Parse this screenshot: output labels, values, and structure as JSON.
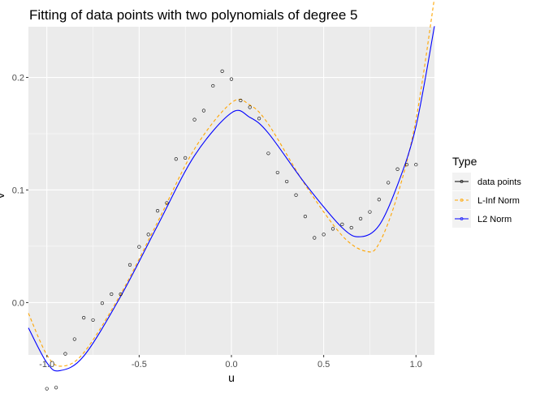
{
  "chart_data": {
    "type": "line",
    "title": "Fitting of data points with two polynomials of degree 5",
    "xlabel": "u",
    "ylabel": "v",
    "xlim": [
      -1.1,
      1.1
    ],
    "ylim": [
      -0.0465,
      0.245
    ],
    "xticks": [
      -1.0,
      -0.5,
      0.0,
      0.5,
      1.0
    ],
    "xtick_labels": [
      "-1.0",
      "-0.5",
      "0.0",
      "0.5",
      "1.0"
    ],
    "yticks": [
      0.0,
      0.1,
      0.2
    ],
    "ytick_labels": [
      "0.0",
      "0.1",
      "0.2"
    ],
    "grid": true,
    "legend": {
      "title": "Type",
      "position": "right",
      "entries": [
        "data points",
        "L-Inf Norm",
        "L2 Norm"
      ]
    },
    "series": [
      {
        "name": "data points",
        "kind": "scatter",
        "color": "#000000",
        "x": [
          -1.0,
          -0.95,
          -0.9,
          -0.85,
          -0.8,
          -0.75,
          -0.7,
          -0.65,
          -0.6,
          -0.55,
          -0.5,
          -0.45,
          -0.4,
          -0.35,
          -0.3,
          -0.25,
          -0.2,
          -0.15,
          -0.1,
          -0.05,
          0.0,
          0.05,
          0.1,
          0.15,
          0.2,
          0.25,
          0.3,
          0.35,
          0.4,
          0.45,
          0.5,
          0.55,
          0.6,
          0.65,
          0.7,
          0.75,
          0.8,
          0.85,
          0.9,
          0.95,
          1.0
        ],
        "y": [
          -0.0765,
          -0.0755,
          -0.0455,
          -0.0325,
          -0.0135,
          -0.0155,
          -0.0005,
          0.0075,
          0.0075,
          0.0335,
          0.0495,
          0.0605,
          0.0815,
          0.0885,
          0.1275,
          0.1285,
          0.1625,
          0.1705,
          0.1925,
          0.2055,
          0.1985,
          0.1795,
          0.1735,
          0.1635,
          0.1325,
          0.1155,
          0.1075,
          0.0955,
          0.0765,
          0.0575,
          0.0605,
          0.0655,
          0.0695,
          0.0665,
          0.0745,
          0.0805,
          0.0915,
          0.1065,
          0.1185,
          0.1225,
          0.1225
        ]
      },
      {
        "name": "L-Inf Norm",
        "kind": "line",
        "dashed": true,
        "color": "#FFA500",
        "x": [
          -1.1,
          -1.0,
          -0.92,
          -0.8,
          -0.6,
          -0.4,
          -0.2,
          0.0,
          0.1,
          0.2,
          0.4,
          0.6,
          0.73,
          0.8,
          0.9,
          1.0,
          1.1
        ],
        "y": [
          -0.0095,
          -0.0465,
          -0.0565,
          -0.0445,
          0.0075,
          0.0715,
          0.1365,
          0.1775,
          0.1755,
          0.1585,
          0.1045,
          0.0595,
          0.0455,
          0.0525,
          0.0955,
          0.1625,
          0.2705
        ]
      },
      {
        "name": "L2 Norm",
        "kind": "line",
        "dashed": false,
        "color": "#0000FF",
        "x": [
          -1.1,
          -1.0,
          -0.93,
          -0.8,
          -0.6,
          -0.4,
          -0.2,
          0.0,
          0.1,
          0.2,
          0.4,
          0.6,
          0.7,
          0.8,
          0.9,
          1.0,
          1.1
        ],
        "y": [
          -0.0225,
          -0.0535,
          -0.0605,
          -0.0475,
          0.0055,
          0.0685,
          0.1305,
          0.1685,
          0.1645,
          0.1505,
          0.1055,
          0.0665,
          0.0585,
          0.0685,
          0.1045,
          0.1565,
          0.2455
        ]
      }
    ]
  }
}
